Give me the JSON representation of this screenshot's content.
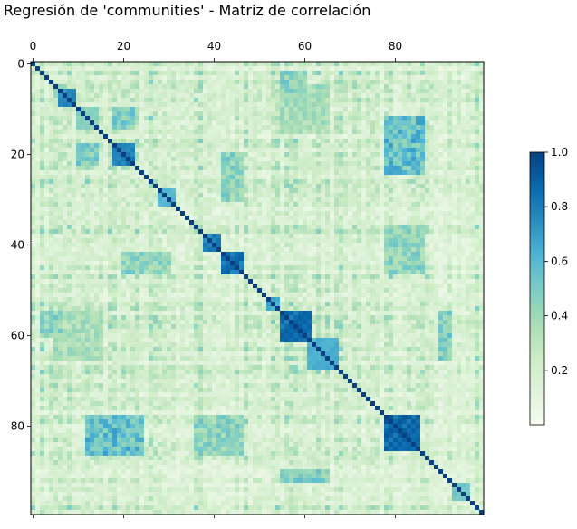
{
  "chart_data": {
    "type": "heatmap",
    "title": "Regresión de 'communities' - Matriz de correlación",
    "n": 100,
    "xticks": [
      0,
      20,
      40,
      60,
      80
    ],
    "yticks": [
      0,
      20,
      40,
      60,
      80
    ],
    "x_axis_position": "top",
    "xlim": [
      -0.5,
      99.5
    ],
    "ylim": [
      99.5,
      -0.5
    ],
    "grid": false,
    "colormap": "GnBu",
    "colorbar": {
      "placement": "right",
      "range": [
        0,
        1
      ],
      "ticks": [
        0.2,
        0.4,
        0.6,
        0.8,
        1.0
      ],
      "tick_labels": [
        "0.2",
        "0.4",
        "0.6",
        "0.8",
        "1.0"
      ]
    },
    "blocks": [
      {
        "start": 6,
        "end": 9,
        "level": 0.85
      },
      {
        "start": 10,
        "end": 14,
        "level": 0.5
      },
      {
        "start": 18,
        "end": 22,
        "level": 0.85
      },
      {
        "start": 28,
        "end": 31,
        "level": 0.65
      },
      {
        "start": 38,
        "end": 41,
        "level": 0.85
      },
      {
        "start": 42,
        "end": 46,
        "level": 0.9
      },
      {
        "start": 52,
        "end": 54,
        "level": 0.7
      },
      {
        "start": 55,
        "end": 61,
        "level": 0.92
      },
      {
        "start": 61,
        "end": 67,
        "level": 0.7
      },
      {
        "start": 78,
        "end": 85,
        "level": 0.95
      },
      {
        "start": 93,
        "end": 96,
        "level": 0.55
      }
    ],
    "cross_blocks": [
      {
        "rows": [
          12,
          24
        ],
        "cols": [
          78,
          86
        ],
        "level": 0.7
      },
      {
        "rows": [
          18,
          22
        ],
        "cols": [
          10,
          14
        ],
        "level": 0.6
      },
      {
        "rows": [
          36,
          46
        ],
        "cols": [
          78,
          86
        ],
        "level": 0.55
      },
      {
        "rows": [
          20,
          30
        ],
        "cols": [
          42,
          46
        ],
        "level": 0.55
      },
      {
        "rows": [
          55,
          65
        ],
        "cols": [
          5,
          15
        ],
        "level": 0.45
      },
      {
        "rows": [
          90,
          92
        ],
        "cols": [
          55,
          65
        ],
        "level": 0.6
      },
      {
        "rows": [
          2,
          6
        ],
        "cols": [
          55,
          60
        ],
        "level": 0.55
      }
    ],
    "background_level": 0.2,
    "diagonal_value": 1.0
  }
}
